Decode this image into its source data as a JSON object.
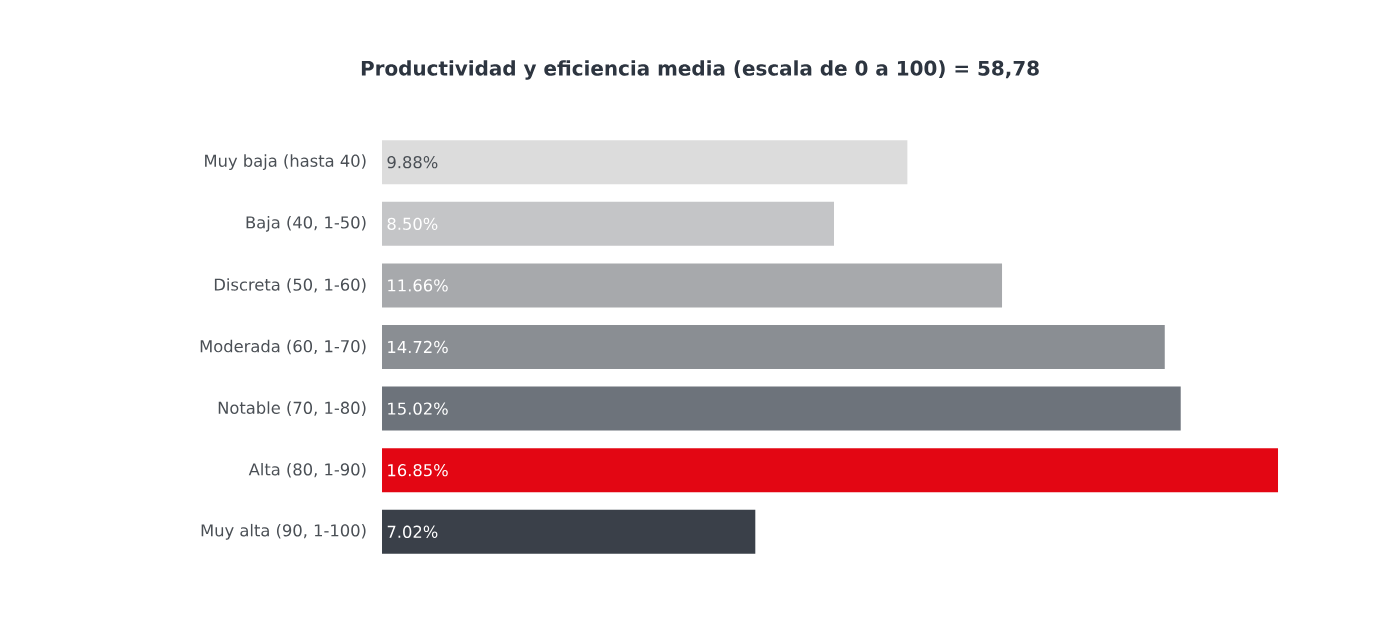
{
  "chart_data": {
    "type": "bar",
    "orientation": "horizontal",
    "title": "Productividad y eficiencia media (escala de 0 a 100) = 58,78",
    "categories": [
      "Muy baja (hasta 40)",
      "Baja (40, 1-50)",
      "Discreta (50, 1-60)",
      "Moderada (60, 1-70)",
      "Notable (70, 1-80)",
      "Alta (80, 1-90)",
      "Muy alta (90, 1-100)"
    ],
    "values": [
      9.88,
      8.5,
      11.66,
      14.72,
      15.02,
      16.85,
      7.02
    ],
    "value_labels": [
      "9.88%",
      "8.50%",
      "11.66%",
      "14.72%",
      "15.02%",
      "16.85%",
      "7.02%"
    ],
    "colors": [
      "#dcdcdc",
      "#c4c5c7",
      "#a7a9ac",
      "#8a8e93",
      "#6d737b",
      "#e30613",
      "#3a4049"
    ],
    "tick_labels": "y"
  }
}
